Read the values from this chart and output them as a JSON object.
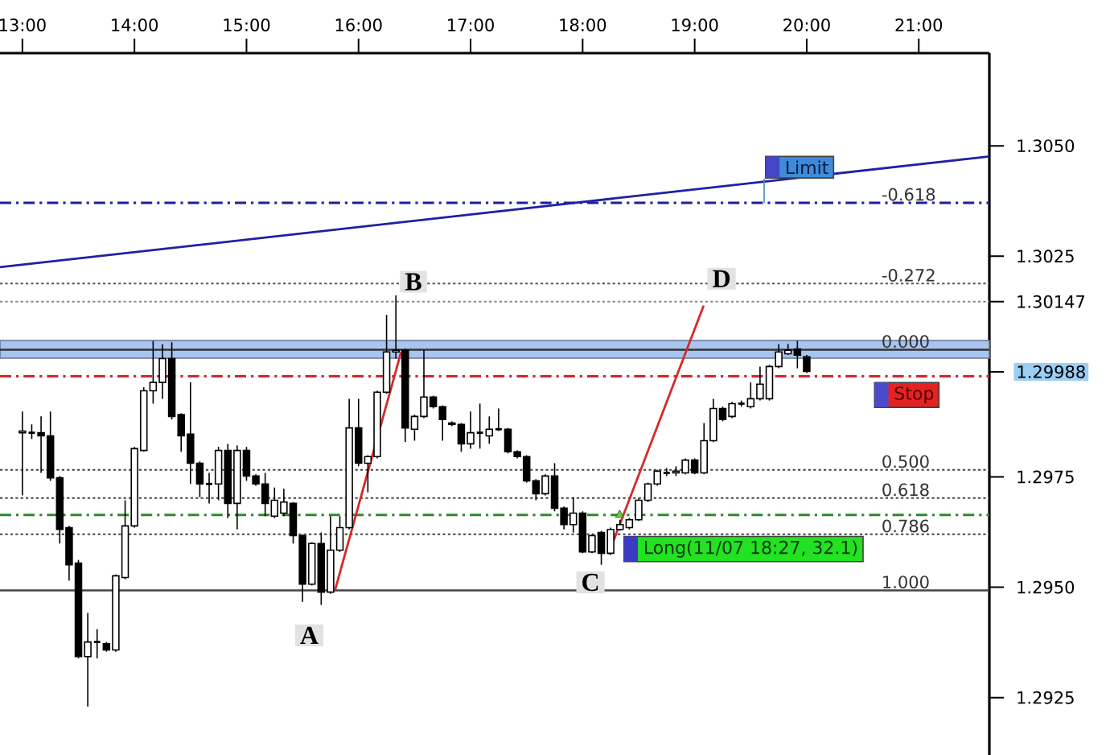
{
  "chart_data": {
    "type": "candlestick",
    "x": [
      13,
      13.0833,
      13.1667,
      13.25,
      13.3333,
      13.4167,
      13.5,
      13.5833,
      13.6667,
      13.75,
      13.8333,
      13.9167,
      14,
      14.0833,
      14.1667,
      14.25,
      14.3333,
      14.4167,
      14.5,
      14.5833,
      14.6667,
      14.75,
      14.8333,
      14.9167,
      15,
      15.0833,
      15.1667,
      15.25,
      15.3333,
      15.4167,
      15.5,
      15.5833,
      15.6667,
      15.75,
      15.8333,
      15.9167,
      16,
      16.0833,
      16.1667,
      16.25,
      16.3333,
      16.4167,
      16.5,
      16.5833,
      16.6667,
      16.75,
      16.8333,
      16.9167,
      17,
      17.0833,
      17.1667,
      17.25,
      17.3333,
      17.4167,
      17.5,
      17.5833,
      17.6667,
      17.75,
      17.8333,
      17.9167,
      18,
      18.0833,
      18.1667,
      18.25,
      18.3333,
      18.4167,
      18.5,
      18.5833,
      18.6667,
      18.75,
      18.8333,
      18.9167,
      19,
      19.0833,
      19.1667,
      19.25,
      19.3333,
      19.4167,
      19.5,
      19.5833,
      19.6667,
      19.75,
      19.8333,
      19.9167,
      20
    ],
    "ohlc": [
      [
        1.2985,
        1.29898,
        1.29708,
        1.29854
      ],
      [
        1.2985,
        1.29869,
        1.29836,
        1.2985
      ],
      [
        1.2985,
        1.29887,
        1.29759,
        1.29843
      ],
      [
        1.29843,
        1.29898,
        1.29741,
        1.29748
      ],
      [
        1.29748,
        1.29752,
        1.29599,
        1.29631
      ],
      [
        1.29635,
        1.29639,
        1.29515,
        1.29551
      ],
      [
        1.29555,
        1.29562,
        1.29339,
        1.29343
      ],
      [
        1.29343,
        1.29442,
        1.2923,
        1.29376
      ],
      [
        1.29376,
        1.29405,
        1.29339,
        1.29376
      ],
      [
        1.29372,
        1.29376,
        1.29354,
        1.29358
      ],
      [
        1.29358,
        1.29529,
        1.29354,
        1.29526
      ],
      [
        1.29522,
        1.29697,
        1.29518,
        1.29639
      ],
      [
        1.29639,
        1.29818,
        1.29635,
        1.29814
      ],
      [
        1.2981,
        1.29953,
        1.29807,
        1.29945
      ],
      [
        1.29945,
        1.30058,
        1.29916,
        1.29964
      ],
      [
        1.29964,
        1.30051,
        1.29927,
        1.30018
      ],
      [
        1.30018,
        1.30055,
        1.2988,
        1.29887
      ],
      [
        1.29891,
        1.29894,
        1.29807,
        1.29843
      ],
      [
        1.29847,
        1.29964,
        1.29734,
        1.29781
      ],
      [
        1.29781,
        1.29785,
        1.29704,
        1.29734
      ],
      [
        1.29734,
        1.29759,
        1.2969,
        1.29734
      ],
      [
        1.29734,
        1.29818,
        1.29697,
        1.2981
      ],
      [
        1.2981,
        1.29825,
        1.29657,
        1.2969
      ],
      [
        1.2969,
        1.29821,
        1.29631,
        1.2981
      ],
      [
        1.2981,
        1.29818,
        1.29741,
        1.29752
      ],
      [
        1.29752,
        1.29756,
        1.2973,
        1.29734
      ],
      [
        1.29734,
        1.29759,
        1.29661,
        1.2969
      ],
      [
        1.29661,
        1.29726,
        1.29657,
        1.29697
      ],
      [
        1.29668,
        1.29723,
        1.29661,
        1.29693
      ],
      [
        1.2969,
        1.29693,
        1.29599,
        1.29617
      ],
      [
        1.29617,
        1.2962,
        1.29467,
        1.29507
      ],
      [
        1.29507,
        1.29602,
        1.29504,
        1.29599
      ],
      [
        1.29599,
        1.29624,
        1.2946,
        1.29489
      ],
      [
        1.29489,
        1.29661,
        1.29485,
        1.29584
      ],
      [
        1.29584,
        1.29661,
        1.2958,
        1.29635
      ],
      [
        1.29635,
        1.29927,
        1.29631,
        1.29861
      ],
      [
        1.29861,
        1.29927,
        1.29774,
        1.29781
      ],
      [
        1.29781,
        1.29799,
        1.29715,
        1.29796
      ],
      [
        1.29796,
        1.29945,
        1.29792,
        1.29942
      ],
      [
        1.29942,
        1.30117,
        1.29938,
        1.30033
      ],
      [
        1.30033,
        1.30161,
        1.30018,
        1.30037
      ],
      [
        1.30037,
        1.3004,
        1.29829,
        1.29861
      ],
      [
        1.29858,
        1.29891,
        1.29832,
        1.29887
      ],
      [
        1.29887,
        1.30037,
        1.29883,
        1.29931
      ],
      [
        1.29931,
        1.29934,
        1.29905,
        1.29909
      ],
      [
        1.29909,
        1.29912,
        1.29832,
        1.2988
      ],
      [
        1.29872,
        1.29876,
        1.29865,
        1.29869
      ],
      [
        1.29869,
        1.29872,
        1.29807,
        1.29825
      ],
      [
        1.29825,
        1.29898,
        1.29814,
        1.2985
      ],
      [
        1.2985,
        1.29916,
        1.29814,
        1.2985
      ],
      [
        1.29843,
        1.29887,
        1.29825,
        1.29858
      ],
      [
        1.29858,
        1.29905,
        1.29854,
        1.29858
      ],
      [
        1.29858,
        1.29861,
        1.29803,
        1.29807
      ],
      [
        1.29807,
        1.2981,
        1.29792,
        1.29796
      ],
      [
        1.29796,
        1.29799,
        1.29737,
        1.29741
      ],
      [
        1.29741,
        1.29745,
        1.29697,
        1.29712
      ],
      [
        1.29712,
        1.29756,
        1.29708,
        1.29752
      ],
      [
        1.29752,
        1.29781,
        1.29672,
        1.29679
      ],
      [
        1.29679,
        1.29683,
        1.29631,
        1.29642
      ],
      [
        1.29642,
        1.29704,
        1.29624,
        1.29668
      ],
      [
        1.29668,
        1.29672,
        1.29577,
        1.2958
      ],
      [
        1.2958,
        1.2962,
        1.29577,
        1.29617
      ],
      [
        1.29624,
        1.29628,
        1.29551,
        1.29577
      ],
      [
        1.29577,
        1.29635,
        1.29573,
        1.29631
      ],
      [
        1.29631,
        1.29653,
        1.29628,
        1.29642
      ],
      [
        1.29635,
        1.29657,
        1.29631,
        1.29653
      ],
      [
        1.29653,
        1.29701,
        1.2965,
        1.29697
      ],
      [
        1.29697,
        1.29737,
        1.29693,
        1.29734
      ],
      [
        1.29734,
        1.29766,
        1.2973,
        1.29763
      ],
      [
        1.29759,
        1.2977,
        1.29752,
        1.29759
      ],
      [
        1.29759,
        1.29774,
        1.29752,
        1.29763
      ],
      [
        1.29759,
        1.29792,
        1.29756,
        1.29788
      ],
      [
        1.29788,
        1.29792,
        1.29756,
        1.29759
      ],
      [
        1.29759,
        1.29872,
        1.29756,
        1.29832
      ],
      [
        1.29832,
        1.29927,
        1.29829,
        1.29905
      ],
      [
        1.29905,
        1.29909,
        1.29876,
        1.2988
      ],
      [
        1.29887,
        1.2992,
        1.29883,
        1.29916
      ],
      [
        1.29916,
        1.29923,
        1.29909,
        1.29916
      ],
      [
        1.29909,
        1.29964,
        1.29905,
        1.29927
      ],
      [
        1.29927,
        1.3,
        1.29923,
        1.2996
      ],
      [
        1.29927,
        1.30004,
        1.29923,
        1.3
      ],
      [
        1.3,
        1.30051,
        1.29996,
        1.30033
      ],
      [
        1.30029,
        1.30051,
        1.30026,
        1.30037
      ],
      [
        1.3004,
        1.30058,
        1.29996,
        1.30026
      ],
      [
        1.30022,
        1.30026,
        1.29985,
        1.29989
      ]
    ],
    "xlim": [
      12.8,
      21.63
    ],
    "ylim": [
      1.2912,
      1.3071
    ],
    "xticks": [
      {
        "value": 13,
        "label": "13:00"
      },
      {
        "value": 14,
        "label": "14:00"
      },
      {
        "value": 15,
        "label": "15:00"
      },
      {
        "value": 16,
        "label": "16:00"
      },
      {
        "value": 17,
        "label": "17:00"
      },
      {
        "value": 18,
        "label": "18:00"
      },
      {
        "value": 19,
        "label": "19:00"
      },
      {
        "value": 20,
        "label": "20:00"
      },
      {
        "value": 21,
        "label": "21:00"
      }
    ],
    "yticks": [
      {
        "value": 1.305,
        "label": "1.3050"
      },
      {
        "value": 1.3025,
        "label": "1.3025"
      },
      {
        "value": 1.30147,
        "label": "1.30147"
      },
      {
        "value": 1.29988,
        "label": "1.29988"
      },
      {
        "value": 1.2975,
        "label": "1.2975"
      },
      {
        "value": 1.295,
        "label": "1.2950"
      },
      {
        "value": 1.2925,
        "label": "1.2925"
      }
    ],
    "series": [
      {
        "type": "line",
        "color": "#1f1fa8",
        "x": [
          12.8,
          21.63
        ],
        "values": [
          1.30225,
          1.30476
        ]
      },
      {
        "type": "line",
        "color": "#d42a2a",
        "x": [
          15.79,
          16.38
        ],
        "values": [
          1.29493,
          1.30033
        ]
      },
      {
        "type": "line",
        "color": "#d42a2a",
        "x": [
          18.23,
          19.08
        ],
        "values": [
          1.29575,
          1.30138
        ]
      },
      {
        "type": "scatter",
        "color": "#66cc33",
        "marker": "triangle",
        "x": [
          18.33
        ],
        "values": [
          1.29664
        ]
      }
    ],
    "bands": [
      {
        "axis": "y",
        "from": 1.30019,
        "to": 1.30059,
        "color": "#a8c4f0"
      }
    ],
    "ref_lines": [
      {
        "axis": "y",
        "value": 1.30371,
        "color": "#1f1f99",
        "line_style": "dashdot"
      },
      {
        "axis": "y",
        "value": 1.30188,
        "color": "#555555",
        "line_style": "dotted"
      },
      {
        "axis": "y",
        "value": 1.30147,
        "color": "#888888",
        "line_style": "dotted"
      },
      {
        "axis": "y",
        "value": 1.30038,
        "color": "#333333",
        "line_style": "solid"
      },
      {
        "axis": "y",
        "value": 1.29766,
        "color": "#444444",
        "line_style": "dotted"
      },
      {
        "axis": "y",
        "value": 1.29702,
        "color": "#444444",
        "line_style": "dotted"
      },
      {
        "axis": "y",
        "value": 1.2962,
        "color": "#444444",
        "line_style": "dotted"
      },
      {
        "axis": "y",
        "value": 1.29493,
        "color": "#444444",
        "line_style": "solid"
      },
      {
        "axis": "y",
        "value": 1.29664,
        "color": "#2a8a2a",
        "line_style": "dashdot"
      },
      {
        "axis": "y",
        "value": 1.29978,
        "color": "#d42424",
        "line_style": "dashdot"
      }
    ],
    "annotations": [
      {
        "text": "A",
        "x": 15.56,
        "y": 1.29391
      },
      {
        "text": "B",
        "x": 16.49,
        "y": 1.30192
      },
      {
        "text": "C",
        "x": 18.07,
        "y": 1.29511
      },
      {
        "text": "D",
        "x": 19.24,
        "y": 1.30199
      },
      {
        "text": "Limit",
        "x": 19.62,
        "y": 1.30371
      },
      {
        "text": "Stop",
        "x": 20.6,
        "y": 1.29978
      },
      {
        "text": "Long(11/07 18:27, 32.1)",
        "x": 18.45,
        "y": 1.29664
      },
      {
        "text": "-0.618",
        "x": 20.65,
        "y": 1.30371
      },
      {
        "text": "-0.272",
        "x": 20.65,
        "y": 1.30188
      },
      {
        "text": "0.000",
        "x": 20.65,
        "y": 1.30038
      },
      {
        "text": "0.500",
        "x": 20.65,
        "y": 1.29766
      },
      {
        "text": "0.618",
        "x": 20.65,
        "y": 1.29702
      },
      {
        "text": "0.786",
        "x": 20.65,
        "y": 1.2962
      },
      {
        "text": "1.000",
        "x": 20.65,
        "y": 1.29493
      }
    ]
  }
}
